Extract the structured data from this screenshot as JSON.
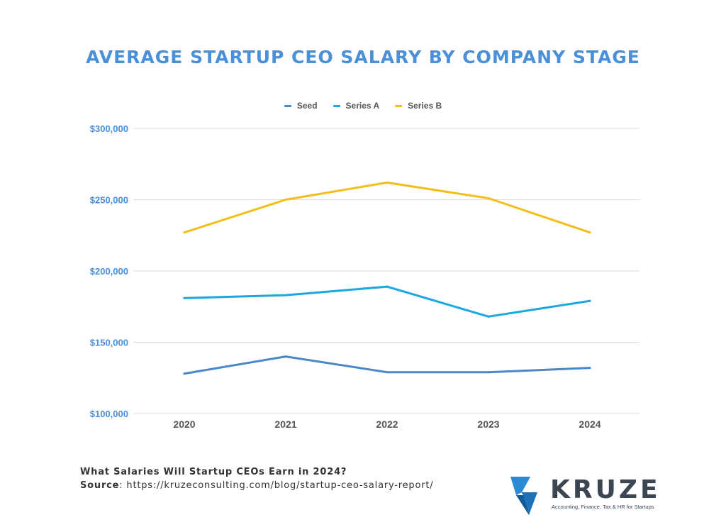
{
  "chart_data": {
    "type": "line",
    "title": "AVERAGE STARTUP CEO SALARY BY COMPANY STAGE",
    "xlabel": "",
    "ylabel": "",
    "x": [
      "2020",
      "2021",
      "2022",
      "2023",
      "2024"
    ],
    "ylim": [
      100000,
      300000
    ],
    "yticks": [
      100000,
      150000,
      200000,
      250000,
      300000
    ],
    "ytick_labels": [
      "$100,000",
      "$150,000",
      "$200,000",
      "$250,000",
      "$300,000"
    ],
    "grid": true,
    "legend_position": "top-center",
    "series": [
      {
        "name": "Seed",
        "color": "#4a88c8",
        "values": [
          128000,
          140000,
          129000,
          129000,
          132000
        ]
      },
      {
        "name": "Series A",
        "color": "#1ba7e0",
        "values": [
          181000,
          183000,
          189000,
          168000,
          179000
        ]
      },
      {
        "name": "Series B",
        "color": "#f2be1a",
        "values": [
          227000,
          250000,
          262000,
          251000,
          227000
        ]
      }
    ]
  },
  "footer": {
    "heading": "What Salaries Will Startup CEOs Earn in 2024?",
    "source_label": "Source",
    "source_url": "https://kruzeconsulting.com/blog/startup-ceo-salary-report/"
  },
  "logo": {
    "name": "KRUZE",
    "tagline": "Accounting, Finance, Tax & HR for Startups",
    "icon": "kruze-chevron-logo"
  },
  "colors": {
    "title": "#4a90d9",
    "axis_labels": "#4a90d9",
    "grid": "#dddddd"
  }
}
